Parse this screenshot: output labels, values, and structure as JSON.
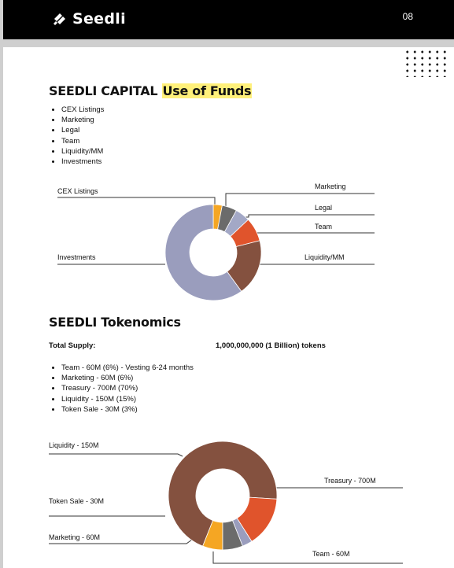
{
  "header": {
    "brand": "Seedli",
    "logo_icon": "seedli-logo-icon",
    "page_number": "08"
  },
  "use_of_funds": {
    "title_prefix": "SEEDLI CAPITAL",
    "title_highlight": "Use of Funds",
    "items": [
      "CEX Listings",
      "Marketing",
      "Legal",
      "Team",
      "Liquidity/MM",
      "Investments"
    ]
  },
  "tokenomics": {
    "title": "SEEDLI Tokenomics",
    "total_supply_label": "Total Supply:",
    "total_supply_value": "1,000,000,000 (1 Billion) tokens",
    "items": [
      "Team - 60M (6%) - Vesting 6-24 months",
      "Marketing - 60M (6%)",
      "Treasury - 700M (70%)",
      "Liquidity - 150M (15%)",
      "Token Sale -  30M (3%)"
    ]
  },
  "chart_data": [
    {
      "type": "pie",
      "donut": true,
      "labels": [
        "CEX Listings",
        "Marketing",
        "Legal",
        "Team",
        "Liquidity/MM",
        "Investments"
      ],
      "values": [
        3,
        5,
        5,
        8,
        19,
        60
      ],
      "colors": [
        "#f5a623",
        "#6b6b6b",
        "#a3a8c6",
        "#e0542c",
        "#84513f",
        "#9a9dbd"
      ]
    },
    {
      "type": "pie",
      "donut": true,
      "labels": [
        "Team - 60M",
        "Treasury - 700M",
        "Liquidity - 150M",
        "Token Sale - 30M",
        "Marketing - 60M"
      ],
      "values": [
        6,
        70,
        15,
        3,
        6
      ],
      "colors": [
        "#f5a623",
        "#84513f",
        "#e0542c",
        "#9a9dbd",
        "#6b6b6b"
      ]
    }
  ]
}
